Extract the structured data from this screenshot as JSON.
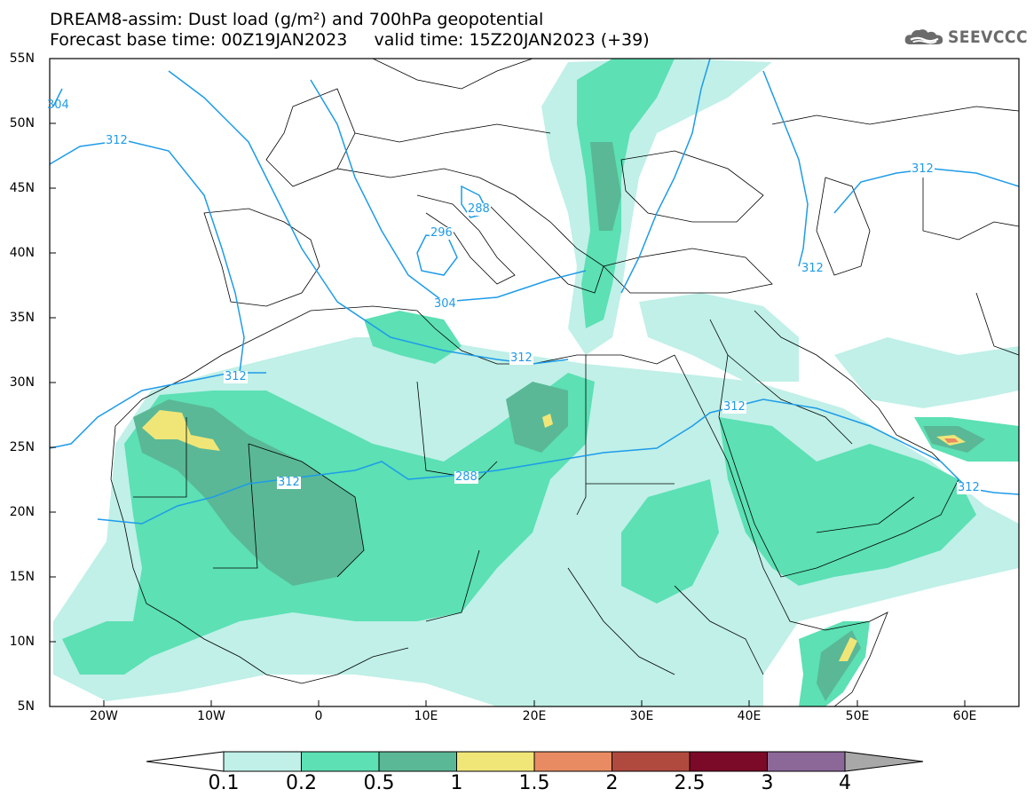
{
  "header": {
    "title_line1": "DREAM8-assim: Dust load (g/m²) and 700hPa geopotential",
    "title_line2": "Forecast base time: 00Z19JAN2023     valid time: 15Z20JAN2023 (+39)"
  },
  "logo": {
    "text": "SEEVCCC",
    "icon": "cloud-logo-icon"
  },
  "map": {
    "lat_labels": [
      "55N",
      "50N",
      "45N",
      "40N",
      "35N",
      "30N",
      "25N",
      "20N",
      "15N",
      "10N",
      "5N"
    ],
    "lon_labels": [
      "20W",
      "10W",
      "0",
      "10E",
      "20E",
      "30E",
      "40E",
      "50E",
      "60E"
    ],
    "contour_labels": [
      "304",
      "312",
      "312",
      "312",
      "288",
      "288",
      "296",
      "304",
      "312",
      "312",
      "312",
      "312",
      "312"
    ],
    "contour_color": "#1e9be8",
    "border_color": "#000000"
  },
  "colorbar": {
    "labels": [
      "0.1",
      "0.2",
      "0.5",
      "1",
      "1.5",
      "2",
      "2.5",
      "3",
      "4"
    ],
    "colors": [
      "#c0f0e8",
      "#5ce0b4",
      "#5ab896",
      "#f0e678",
      "#e88b62",
      "#b04a3e",
      "#7a0a28",
      "#8c6898",
      "#a8a8a8"
    ]
  }
}
